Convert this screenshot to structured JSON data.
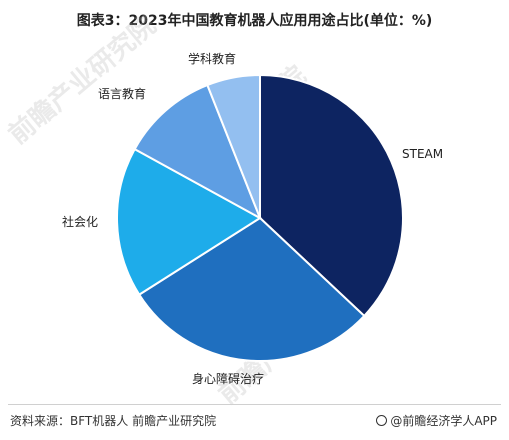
{
  "title": "图表3：2023年中国教育机器人应用用途占比(单位：%)",
  "chart_data": {
    "type": "pie",
    "title": "图表3：2023年中国教育机器人应用用途占比(单位：%)",
    "slices": [
      {
        "label": "STEAM",
        "value": 37,
        "color": "#0d2461"
      },
      {
        "label": "身心障碍治疗",
        "value": 29,
        "color": "#1f6fbf"
      },
      {
        "label": "社会化",
        "value": 17,
        "color": "#1eacea"
      },
      {
        "label": "语言教育",
        "value": 11,
        "color": "#5e9ee3"
      },
      {
        "label": "学科教育",
        "value": 6,
        "color": "#93bff0"
      }
    ]
  },
  "source": "资料来源：BFT机器人 前瞻产业研究院",
  "brand": "@前瞻经济学人APP",
  "watermarks": [
    "前瞻产业研究院",
    "前瞻产业研究院",
    "前瞻产业研究院"
  ]
}
